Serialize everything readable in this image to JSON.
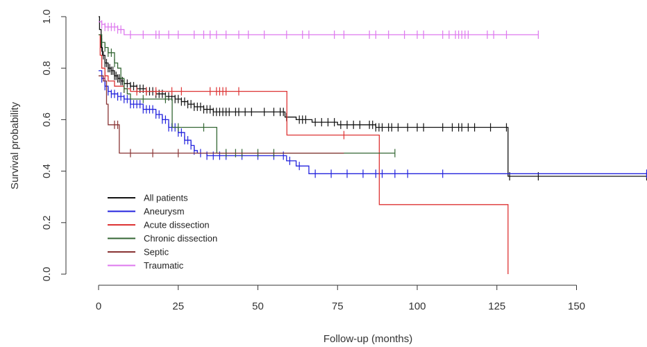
{
  "chart_data": {
    "type": "line",
    "subtype": "kaplan-meier step",
    "xlabel": "Follow-up (months)",
    "ylabel": "Survival probability",
    "xlim": [
      0,
      172
    ],
    "ylim": [
      0,
      1.0
    ],
    "x_ticks": [
      "0",
      "25",
      "50",
      "75",
      "100",
      "125",
      "150"
    ],
    "y_ticks": [
      "0.0",
      "0.2",
      "0.4",
      "0.6",
      "0.8",
      "1.0"
    ],
    "grid": false,
    "legend_position": "bottom-left",
    "series": [
      {
        "name": "All patients",
        "color": "#111111",
        "steps": [
          [
            0,
            1.0
          ],
          [
            0.3,
            0.95
          ],
          [
            0.8,
            0.88
          ],
          [
            1.2,
            0.85
          ],
          [
            2,
            0.82
          ],
          [
            3,
            0.8
          ],
          [
            4,
            0.79
          ],
          [
            5,
            0.77
          ],
          [
            6,
            0.76
          ],
          [
            7,
            0.75
          ],
          [
            8,
            0.74
          ],
          [
            10,
            0.73
          ],
          [
            12,
            0.72
          ],
          [
            15,
            0.71
          ],
          [
            18,
            0.7
          ],
          [
            21,
            0.69
          ],
          [
            24,
            0.68
          ],
          [
            26,
            0.67
          ],
          [
            28,
            0.66
          ],
          [
            30,
            0.65
          ],
          [
            33,
            0.64
          ],
          [
            36,
            0.63
          ],
          [
            58.5,
            0.61
          ],
          [
            62,
            0.6
          ],
          [
            67,
            0.59
          ],
          [
            75,
            0.58
          ],
          [
            87,
            0.57
          ],
          [
            128.5,
            0.38
          ],
          [
            172,
            0.38
          ]
        ],
        "censors": [
          1,
          1.5,
          2,
          2.5,
          3,
          3.5,
          4,
          4.5,
          5,
          5.5,
          6,
          6.5,
          7,
          7.5,
          8,
          9,
          10,
          11,
          12,
          13,
          14,
          15,
          16,
          17,
          18,
          19,
          20,
          21,
          22,
          23,
          24,
          25,
          26,
          27,
          28,
          29,
          30,
          31,
          32,
          33,
          34,
          35,
          36,
          37,
          38,
          39,
          40,
          41,
          43,
          44,
          46,
          48,
          52,
          55,
          57,
          58,
          59,
          63,
          64,
          65,
          68,
          70,
          72,
          74,
          76,
          78,
          80,
          82,
          85,
          86,
          87,
          88,
          89,
          91,
          92,
          94,
          97,
          100,
          102,
          108,
          111,
          113,
          114,
          116,
          118,
          123,
          128,
          129,
          138,
          172
        ]
      },
      {
        "name": "Aneurysm",
        "color": "#2222dd",
        "steps": [
          [
            0,
            0.79
          ],
          [
            1,
            0.76
          ],
          [
            2,
            0.73
          ],
          [
            3,
            0.71
          ],
          [
            4,
            0.7
          ],
          [
            6,
            0.69
          ],
          [
            8,
            0.68
          ],
          [
            10,
            0.66
          ],
          [
            14,
            0.64
          ],
          [
            18,
            0.62
          ],
          [
            20,
            0.6
          ],
          [
            22,
            0.57
          ],
          [
            25,
            0.55
          ],
          [
            27,
            0.52
          ],
          [
            29,
            0.5
          ],
          [
            30,
            0.48
          ],
          [
            31,
            0.47
          ],
          [
            34,
            0.46
          ],
          [
            59,
            0.44
          ],
          [
            62,
            0.42
          ],
          [
            66,
            0.39
          ],
          [
            172,
            0.39
          ]
        ],
        "censors": [
          1,
          2,
          3,
          4,
          5,
          6,
          7,
          8,
          9,
          10,
          11,
          12,
          13,
          14,
          15,
          16,
          17,
          18,
          19,
          20,
          21,
          22,
          23,
          24,
          25,
          26,
          27,
          28,
          29,
          30,
          32,
          34,
          36,
          38,
          40,
          45,
          50,
          55,
          58,
          60,
          63,
          68,
          73,
          78,
          83,
          87,
          89,
          93,
          97,
          108,
          172
        ]
      },
      {
        "name": "Acute dissection",
        "color": "#dd3333",
        "steps": [
          [
            0,
            0.93
          ],
          [
            0.5,
            0.85
          ],
          [
            1,
            0.8
          ],
          [
            2,
            0.77
          ],
          [
            3,
            0.75
          ],
          [
            5,
            0.73
          ],
          [
            8,
            0.72
          ],
          [
            10,
            0.71
          ],
          [
            59,
            0.71
          ],
          [
            59.1,
            0.54
          ],
          [
            88,
            0.54
          ],
          [
            88.1,
            0.27
          ],
          [
            128.5,
            0.27
          ],
          [
            128.5,
            0.0
          ]
        ],
        "censors": [
          2,
          8,
          12,
          15,
          18,
          23,
          26,
          35,
          37,
          38,
          39,
          40,
          44,
          77
        ]
      },
      {
        "name": "Chronic dissection",
        "color": "#336633",
        "steps": [
          [
            0,
            0.93
          ],
          [
            1,
            0.9
          ],
          [
            2,
            0.88
          ],
          [
            3,
            0.86
          ],
          [
            5,
            0.82
          ],
          [
            6,
            0.8
          ],
          [
            7,
            0.76
          ],
          [
            8,
            0.72
          ],
          [
            9,
            0.7
          ],
          [
            10,
            0.68
          ],
          [
            23,
            0.68
          ],
          [
            23.1,
            0.57
          ],
          [
            37,
            0.57
          ],
          [
            37.1,
            0.47
          ],
          [
            93,
            0.47
          ]
        ],
        "censors": [
          1,
          2,
          3,
          4,
          5,
          8,
          14,
          21,
          25,
          33,
          40,
          43,
          45,
          50,
          55,
          93
        ]
      },
      {
        "name": "Septic",
        "color": "#883333",
        "steps": [
          [
            0,
            0.77
          ],
          [
            1.5,
            0.75
          ],
          [
            2.5,
            0.66
          ],
          [
            3,
            0.58
          ],
          [
            6,
            0.58
          ],
          [
            6.5,
            0.47
          ],
          [
            77,
            0.47
          ]
        ],
        "censors": [
          5,
          6,
          10,
          17,
          25
        ]
      },
      {
        "name": "Traumatic",
        "color": "#dd77ee",
        "steps": [
          [
            0,
            0.98
          ],
          [
            1,
            0.97
          ],
          [
            2,
            0.96
          ],
          [
            6,
            0.95
          ],
          [
            8,
            0.93
          ],
          [
            138,
            0.93
          ]
        ],
        "censors": [
          1,
          2,
          3,
          4,
          5,
          6,
          7,
          10,
          14,
          18,
          19,
          22,
          25,
          30,
          33,
          35,
          37,
          40,
          44,
          47,
          52,
          59,
          64,
          66,
          74,
          77,
          85,
          87,
          91,
          96,
          100,
          102,
          108,
          110,
          112,
          113,
          114,
          115,
          116,
          122,
          124,
          128,
          138
        ]
      }
    ]
  }
}
